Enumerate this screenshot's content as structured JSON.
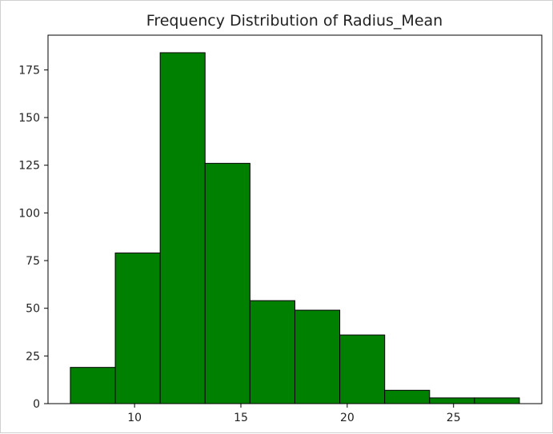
{
  "chart_data": {
    "type": "bar",
    "title": "Frequency Distribution of Radius_Mean",
    "xlabel": "",
    "ylabel": "",
    "bin_edges": [
      6.981,
      9.0926,
      11.2042,
      13.3158,
      15.4274,
      17.539,
      19.6506,
      21.7622,
      23.8738,
      25.9854,
      28.097
    ],
    "values": [
      19,
      79,
      184,
      126,
      54,
      49,
      36,
      7,
      3,
      3
    ],
    "xlim": [
      5.93,
      29.15
    ],
    "ylim": [
      0,
      193.2
    ],
    "x_ticks": [
      10,
      15,
      20,
      25
    ],
    "y_ticks": [
      0,
      25,
      50,
      75,
      100,
      125,
      150,
      175
    ],
    "bar_color": "#008000",
    "edge_color": "#000000",
    "grid": false
  }
}
